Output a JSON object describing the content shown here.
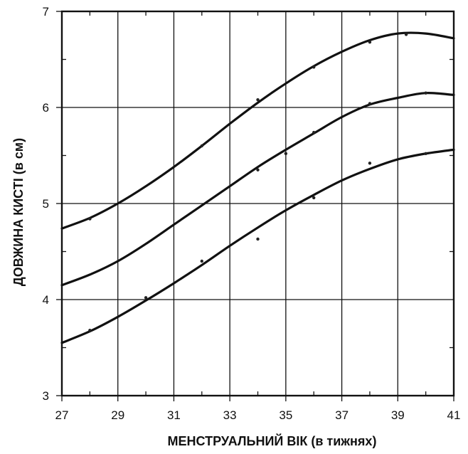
{
  "chart_data": {
    "type": "line",
    "title": "",
    "xlabel": "МЕНСТРУАЛЬНИЙ ВІК (в тижнях)",
    "ylabel": "ДОВЖИНА КИСТІ (в см)",
    "xlim": [
      27,
      41
    ],
    "ylim": [
      3,
      7
    ],
    "x_ticks": [
      "27",
      "29",
      "31",
      "33",
      "35",
      "37",
      "39",
      "41"
    ],
    "y_ticks": [
      "3",
      "4",
      "5",
      "6",
      "7"
    ],
    "grid": true,
    "legend": "none",
    "series": [
      {
        "x": [
          27,
          28,
          29,
          30,
          31,
          32,
          33,
          34,
          35,
          36,
          37,
          38,
          39,
          40,
          41
        ],
        "values": [
          4.74,
          4.85,
          5.0,
          5.18,
          5.38,
          5.6,
          5.83,
          6.05,
          6.25,
          6.43,
          6.58,
          6.7,
          6.77,
          6.77,
          6.72
        ]
      },
      {
        "x": [
          27,
          28,
          29,
          30,
          31,
          32,
          33,
          34,
          35,
          36,
          37,
          38,
          39,
          40,
          41
        ],
        "values": [
          4.15,
          4.26,
          4.4,
          4.58,
          4.78,
          4.98,
          5.18,
          5.38,
          5.56,
          5.73,
          5.9,
          6.03,
          6.1,
          6.15,
          6.13
        ]
      },
      {
        "x": [
          27,
          28,
          29,
          30,
          31,
          32,
          33,
          34,
          35,
          36,
          37,
          38,
          39,
          40,
          41
        ],
        "values": [
          3.55,
          3.67,
          3.82,
          3.99,
          4.17,
          4.36,
          4.56,
          4.75,
          4.93,
          5.09,
          5.24,
          5.36,
          5.46,
          5.52,
          5.56
        ]
      }
    ],
    "points": [
      {
        "x": 28,
        "y": 4.84
      },
      {
        "x": 32,
        "y": 5.6
      },
      {
        "x": 34,
        "y": 6.08
      },
      {
        "x": 36,
        "y": 6.42
      },
      {
        "x": 38,
        "y": 6.68
      },
      {
        "x": 39.3,
        "y": 6.76
      },
      {
        "x": 34,
        "y": 5.35
      },
      {
        "x": 35,
        "y": 5.52
      },
      {
        "x": 36,
        "y": 5.74
      },
      {
        "x": 38,
        "y": 6.04
      },
      {
        "x": 40,
        "y": 6.15
      },
      {
        "x": 28,
        "y": 3.68
      },
      {
        "x": 30,
        "y": 4.02
      },
      {
        "x": 32,
        "y": 4.4
      },
      {
        "x": 34,
        "y": 4.63
      },
      {
        "x": 36,
        "y": 5.06
      },
      {
        "x": 38,
        "y": 5.42
      },
      {
        "x": 40,
        "y": 5.52
      }
    ]
  }
}
